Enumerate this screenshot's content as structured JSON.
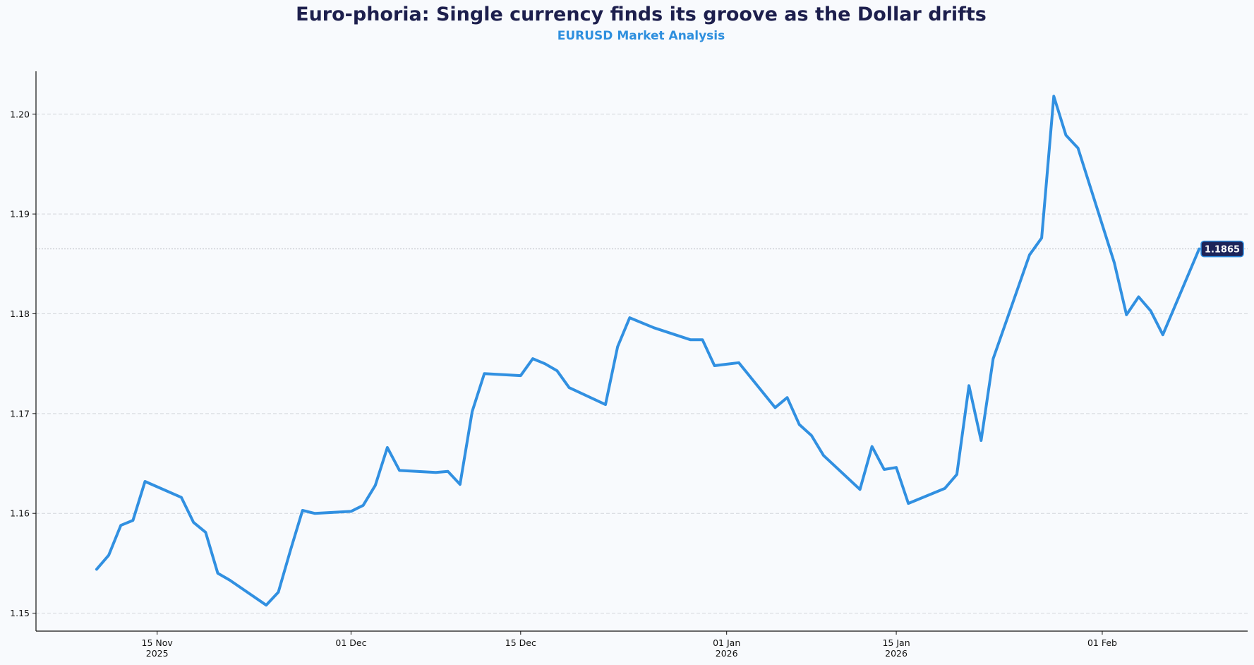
{
  "header": {
    "title": "Euro-phoria: Single currency finds its groove as the Dollar drifts",
    "subtitle": "EURUSD Market Analysis"
  },
  "colors": {
    "background": "#f8fafd",
    "title": "#1d1f4d",
    "subtitle": "#2e8fde",
    "line": "#3190e1",
    "grid": "#d3d6db",
    "reference_line": "#b9bcc2",
    "badge_bg": "#1d2459",
    "badge_border": "#3190e1",
    "axis": "#111111"
  },
  "last_value_badge": "1.1865",
  "chart_data": {
    "type": "line",
    "title": "Euro-phoria: Single currency finds its groove as the Dollar drifts",
    "subtitle": "EURUSD Market Analysis",
    "xlabel": "",
    "ylabel": "",
    "ylim": [
      1.1482,
      1.2043
    ],
    "xlim": [
      "2025-11-05",
      "2026-02-13"
    ],
    "grid": {
      "y": true,
      "x": false,
      "style": "dashed"
    },
    "legend": null,
    "yticks": [
      1.15,
      1.16,
      1.17,
      1.18,
      1.19,
      1.2
    ],
    "ytick_labels": [
      "1.15",
      "1.16",
      "1.17",
      "1.18",
      "1.19",
      "1.20"
    ],
    "xticks": [
      {
        "date": "2025-11-15",
        "label": "15 Nov",
        "sublabel": "2025"
      },
      {
        "date": "2025-12-01",
        "label": "01 Dec",
        "sublabel": ""
      },
      {
        "date": "2025-12-15",
        "label": "15 Dec",
        "sublabel": ""
      },
      {
        "date": "2026-01-01",
        "label": "01 Jan",
        "sublabel": "2026"
      },
      {
        "date": "2026-01-15",
        "label": "15 Jan",
        "sublabel": "2026"
      },
      {
        "date": "2026-02-01",
        "label": "01 Feb",
        "sublabel": ""
      }
    ],
    "annotations": [
      {
        "type": "horizontal-reference",
        "value": 1.1865,
        "style": "dotted"
      },
      {
        "type": "end-label",
        "text": "1.1865"
      }
    ],
    "series": [
      {
        "name": "EURUSD",
        "x": [
          "2025-11-10",
          "2025-11-11",
          "2025-11-12",
          "2025-11-13",
          "2025-11-14",
          "2025-11-17",
          "2025-11-18",
          "2025-11-19",
          "2025-11-20",
          "2025-11-21",
          "2025-11-24",
          "2025-11-25",
          "2025-11-26",
          "2025-11-27",
          "2025-11-28",
          "2025-12-01",
          "2025-12-02",
          "2025-12-03",
          "2025-12-04",
          "2025-12-05",
          "2025-12-08",
          "2025-12-09",
          "2025-12-10",
          "2025-12-11",
          "2025-12-12",
          "2025-12-15",
          "2025-12-16",
          "2025-12-17",
          "2025-12-18",
          "2025-12-19",
          "2025-12-22",
          "2025-12-23",
          "2025-12-24",
          "2025-12-26",
          "2025-12-29",
          "2025-12-30",
          "2025-12-31",
          "2026-01-02",
          "2026-01-05",
          "2026-01-06",
          "2026-01-07",
          "2026-01-08",
          "2026-01-09",
          "2026-01-12",
          "2026-01-13",
          "2026-01-14",
          "2026-01-15",
          "2026-01-16",
          "2026-01-19",
          "2026-01-20",
          "2026-01-21",
          "2026-01-22",
          "2026-01-23",
          "2026-01-26",
          "2026-01-27",
          "2026-01-28",
          "2026-01-29",
          "2026-01-30",
          "2026-02-02",
          "2026-02-03",
          "2026-02-04",
          "2026-02-05",
          "2026-02-06",
          "2026-02-09"
        ],
        "values": [
          1.1544,
          1.1558,
          1.1588,
          1.1593,
          1.1632,
          1.1616,
          1.1591,
          1.1581,
          1.154,
          1.1533,
          1.1508,
          1.1521,
          1.1563,
          1.1603,
          1.16,
          1.1602,
          1.1608,
          1.1628,
          1.1666,
          1.1643,
          1.1641,
          1.1642,
          1.1629,
          1.1702,
          1.174,
          1.1738,
          1.1755,
          1.175,
          1.1743,
          1.1726,
          1.1709,
          1.1767,
          1.1796,
          1.1786,
          1.1774,
          1.1774,
          1.1748,
          1.1751,
          1.1706,
          1.1716,
          1.1689,
          1.1678,
          1.1658,
          1.1624,
          1.1667,
          1.1644,
          1.1646,
          1.161,
          1.1625,
          1.1639,
          1.1728,
          1.1673,
          1.1755,
          1.1859,
          1.1876,
          1.2018,
          1.1979,
          1.1966,
          1.1851,
          1.1799,
          1.1817,
          1.1803,
          1.1779,
          1.1865
        ]
      }
    ]
  }
}
